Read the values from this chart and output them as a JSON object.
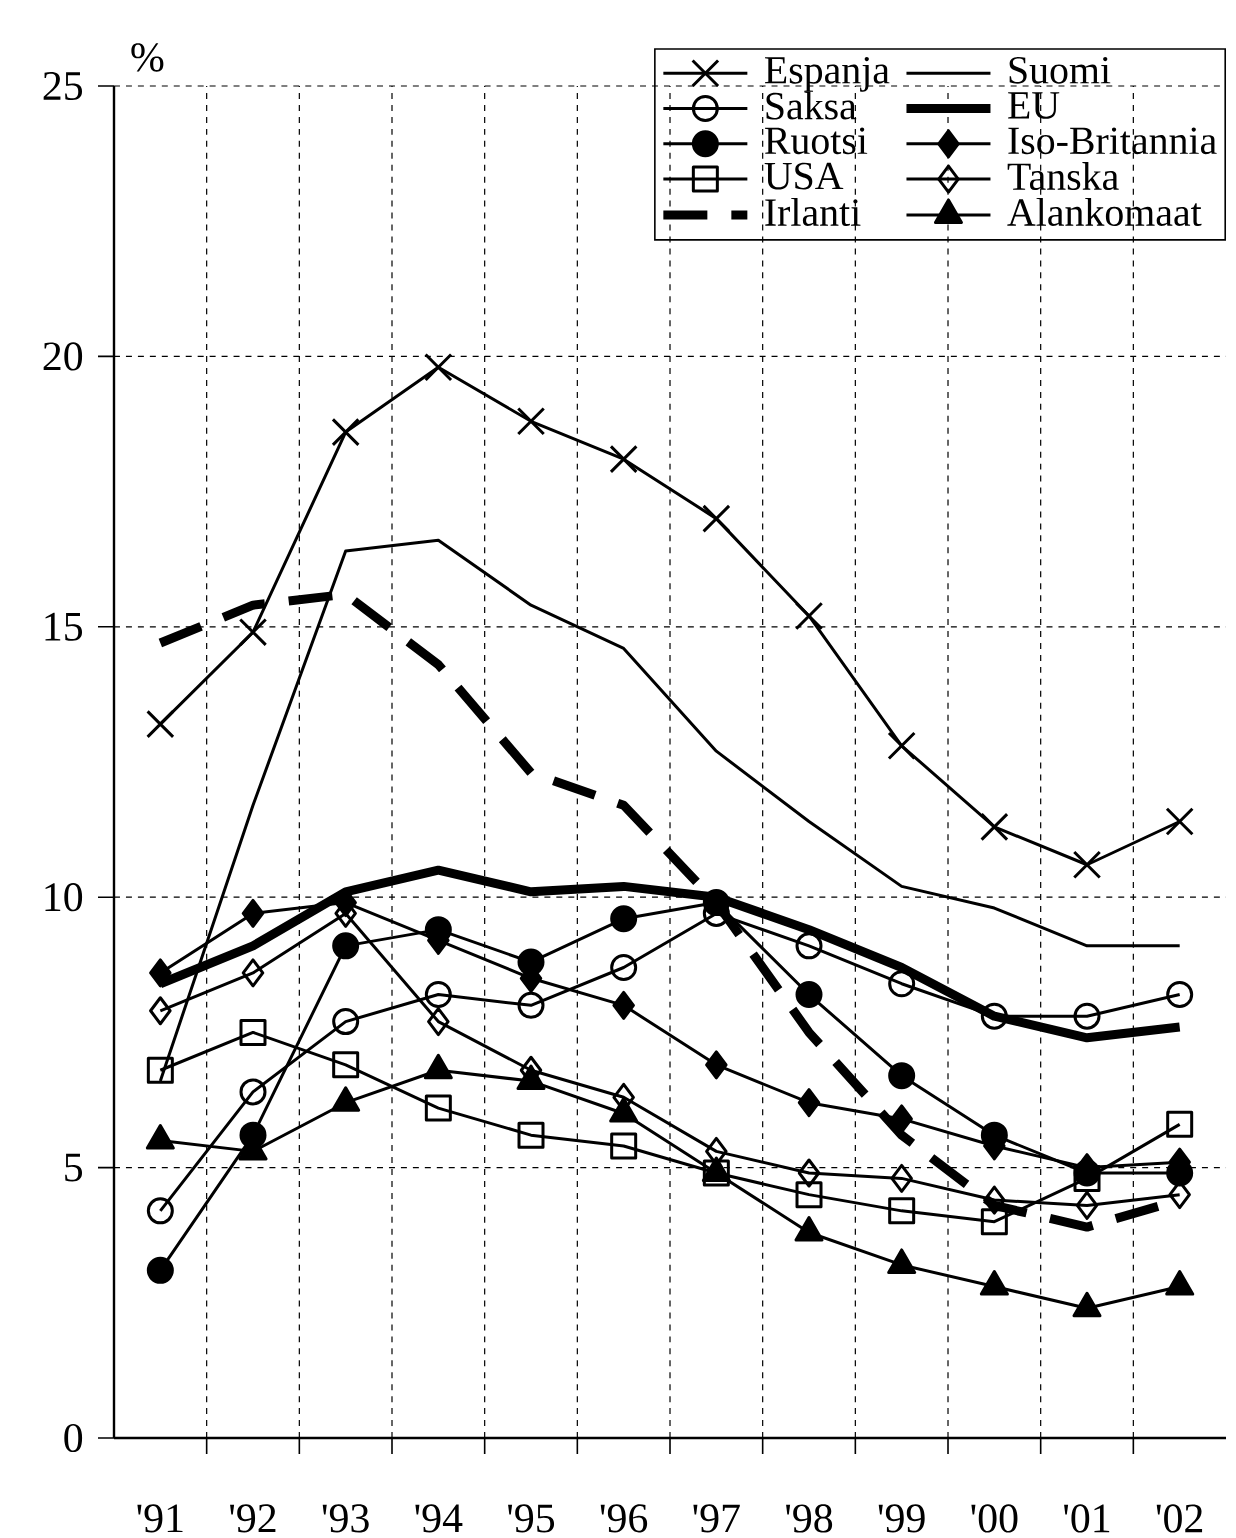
{
  "chart_data": {
    "type": "line",
    "ylabel": "%",
    "categories": [
      "'91",
      "'92",
      "'93",
      "'94",
      "'95",
      "'96",
      "'97",
      "'98",
      "'99",
      "'00",
      "'01",
      "'02"
    ],
    "ylim": [
      0,
      25
    ],
    "yticks": [
      0,
      5,
      10,
      15,
      20,
      25
    ],
    "grid": true,
    "legend": "top right",
    "series": [
      {
        "name": "Espanja",
        "color": "#000000",
        "marker": "cross",
        "line_style": "solid",
        "values": [
          13.2,
          14.9,
          18.6,
          19.8,
          18.8,
          18.1,
          17.0,
          15.2,
          12.8,
          11.3,
          10.6,
          11.4
        ]
      },
      {
        "name": "Suomi",
        "color": "#000000",
        "marker": "none",
        "line_style": "solid",
        "values": [
          6.6,
          11.7,
          16.4,
          16.6,
          15.4,
          14.6,
          12.7,
          11.4,
          10.2,
          9.8,
          9.1,
          9.1
        ]
      },
      {
        "name": "Saksa",
        "color": "#000000",
        "marker": "circle",
        "line_style": "solid",
        "values": [
          4.2,
          6.4,
          7.7,
          8.2,
          8.0,
          8.7,
          9.7,
          9.1,
          8.4,
          7.8,
          7.8,
          8.2
        ]
      },
      {
        "name": "EU",
        "color": "#000000",
        "marker": "none",
        "line_style": "solid",
        "values": [
          8.4,
          9.1,
          10.1,
          10.5,
          10.1,
          10.2,
          10.0,
          9.4,
          8.7,
          7.8,
          7.4,
          7.6
        ]
      },
      {
        "name": "Ruotsi",
        "color": "#000000",
        "marker": "circle",
        "line_style": "solid",
        "values": [
          3.1,
          5.6,
          9.1,
          9.4,
          8.8,
          9.6,
          9.9,
          8.2,
          6.7,
          5.6,
          4.9,
          4.9
        ]
      },
      {
        "name": "Iso-Britannia",
        "color": "#000000",
        "marker": "diamond",
        "line_style": "solid",
        "values": [
          8.6,
          9.7,
          9.9,
          9.2,
          8.5,
          8.0,
          6.9,
          6.2,
          5.9,
          5.4,
          5.0,
          5.1
        ]
      },
      {
        "name": "USA",
        "color": "#000000",
        "marker": "square",
        "line_style": "solid",
        "values": [
          6.8,
          7.5,
          6.9,
          6.1,
          5.6,
          5.4,
          4.9,
          4.5,
          4.2,
          4.0,
          4.8,
          5.8
        ]
      },
      {
        "name": "Tanska",
        "color": "#000000",
        "marker": "diamond",
        "line_style": "solid",
        "values": [
          7.9,
          8.6,
          9.7,
          7.7,
          6.8,
          6.3,
          5.3,
          4.9,
          4.8,
          4.4,
          4.3,
          4.5
        ]
      },
      {
        "name": "Irlanti",
        "color": "#000000",
        "marker": "none",
        "line_style": "dashed",
        "values": [
          14.7,
          15.4,
          15.6,
          14.3,
          12.3,
          11.7,
          9.9,
          7.5,
          5.6,
          4.3,
          3.9,
          4.4
        ]
      },
      {
        "name": "Alankomaat",
        "color": "#000000",
        "marker": "triangle",
        "line_style": "solid",
        "values": [
          5.5,
          5.3,
          6.2,
          6.8,
          6.6,
          6.0,
          4.9,
          3.8,
          3.2,
          2.8,
          2.4,
          2.8
        ]
      }
    ]
  }
}
